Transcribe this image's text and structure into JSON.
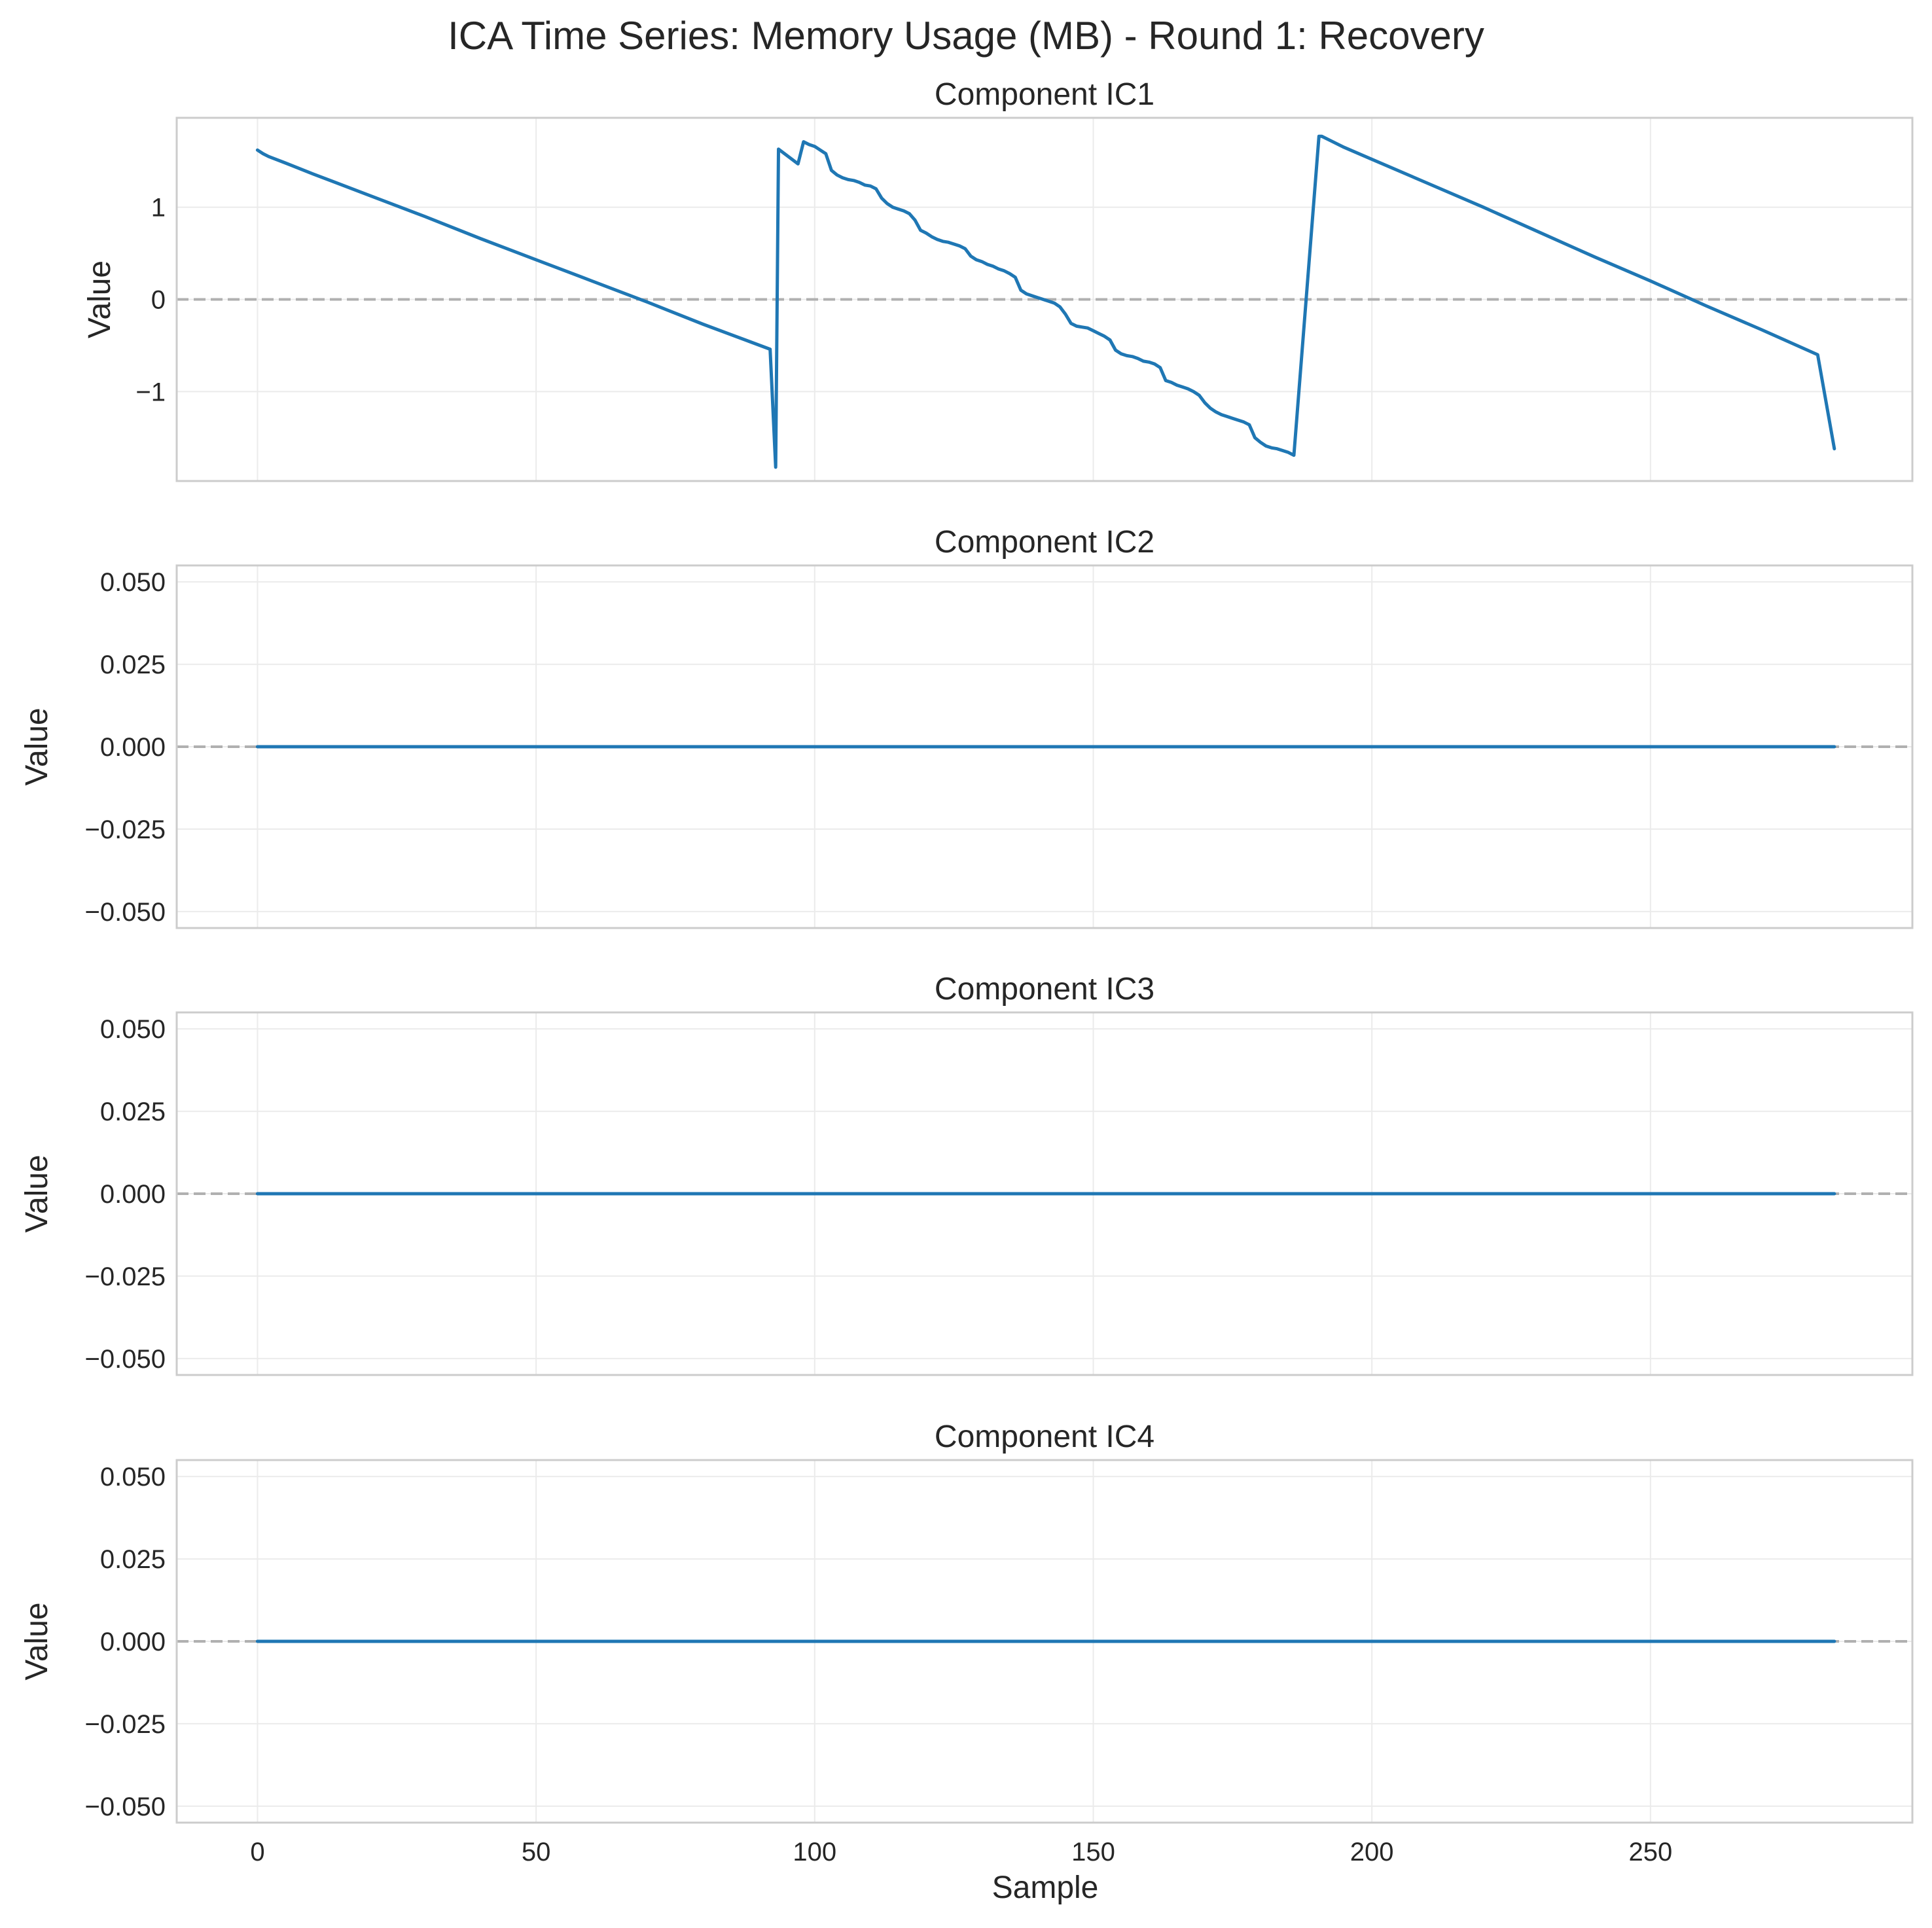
{
  "chart_data": {
    "type": "line",
    "title": "ICA Time Series: Memory Usage (MB) - Round 1: Recovery",
    "xlabel": "Sample",
    "xlim": [
      -14.5,
      297
    ],
    "xticks": [
      0,
      50,
      100,
      150,
      200,
      250
    ],
    "grid": true,
    "line_color": "#1f77b4",
    "zero_line_color": "#b0b0b0",
    "panels": [
      {
        "title": "Component IC1",
        "ylabel": "Value",
        "ylim": [
          -1.97,
          1.97
        ],
        "yticks": [
          {
            "v": 1,
            "label": "1"
          },
          {
            "v": 0,
            "label": "0"
          },
          {
            "v": -1,
            "label": "−1"
          }
        ],
        "points": [
          [
            0,
            1.62
          ],
          [
            1,
            1.58
          ],
          [
            2,
            1.55
          ],
          [
            5,
            1.48
          ],
          [
            10,
            1.36
          ],
          [
            20,
            1.13
          ],
          [
            30,
            0.9
          ],
          [
            40,
            0.66
          ],
          [
            50,
            0.43
          ],
          [
            60,
            0.2
          ],
          [
            70,
            -0.03
          ],
          [
            80,
            -0.27
          ],
          [
            88,
            -0.45
          ],
          [
            92,
            -0.54
          ],
          [
            93,
            -1.82
          ],
          [
            93.5,
            1.63
          ],
          [
            97,
            1.47
          ],
          [
            98,
            1.71
          ],
          [
            99,
            1.68
          ],
          [
            100,
            1.66
          ],
          [
            101,
            1.62
          ],
          [
            102,
            1.58
          ],
          [
            103,
            1.4
          ],
          [
            104,
            1.35
          ],
          [
            105,
            1.32
          ],
          [
            106,
            1.3
          ],
          [
            107,
            1.29
          ],
          [
            108,
            1.27
          ],
          [
            109,
            1.24
          ],
          [
            110,
            1.23
          ],
          [
            111,
            1.2
          ],
          [
            112,
            1.1
          ],
          [
            113,
            1.04
          ],
          [
            114,
            1.0
          ],
          [
            115,
            0.98
          ],
          [
            116,
            0.96
          ],
          [
            117,
            0.93
          ],
          [
            118,
            0.86
          ],
          [
            119,
            0.75
          ],
          [
            120,
            0.72
          ],
          [
            121,
            0.68
          ],
          [
            122,
            0.65
          ],
          [
            123,
            0.63
          ],
          [
            124,
            0.62
          ],
          [
            125,
            0.6
          ],
          [
            126,
            0.58
          ],
          [
            127,
            0.55
          ],
          [
            128,
            0.47
          ],
          [
            129,
            0.43
          ],
          [
            130,
            0.41
          ],
          [
            131,
            0.38
          ],
          [
            132,
            0.36
          ],
          [
            133,
            0.33
          ],
          [
            134,
            0.31
          ],
          [
            135,
            0.28
          ],
          [
            136,
            0.24
          ],
          [
            137,
            0.1
          ],
          [
            138,
            0.06
          ],
          [
            139,
            0.04
          ],
          [
            140,
            0.02
          ],
          [
            141,
            0.0
          ],
          [
            142,
            -0.02
          ],
          [
            143,
            -0.04
          ],
          [
            144,
            -0.08
          ],
          [
            145,
            -0.16
          ],
          [
            146,
            -0.26
          ],
          [
            147,
            -0.29
          ],
          [
            148,
            -0.3
          ],
          [
            149,
            -0.31
          ],
          [
            150,
            -0.34
          ],
          [
            151,
            -0.37
          ],
          [
            152,
            -0.4
          ],
          [
            153,
            -0.44
          ],
          [
            154,
            -0.55
          ],
          [
            155,
            -0.59
          ],
          [
            156,
            -0.61
          ],
          [
            157,
            -0.62
          ],
          [
            158,
            -0.64
          ],
          [
            159,
            -0.67
          ],
          [
            160,
            -0.68
          ],
          [
            161,
            -0.7
          ],
          [
            162,
            -0.74
          ],
          [
            163,
            -0.88
          ],
          [
            164,
            -0.9
          ],
          [
            165,
            -0.93
          ],
          [
            166,
            -0.95
          ],
          [
            167,
            -0.97
          ],
          [
            168,
            -1.0
          ],
          [
            169,
            -1.04
          ],
          [
            170,
            -1.12
          ],
          [
            171,
            -1.18
          ],
          [
            172,
            -1.22
          ],
          [
            173,
            -1.25
          ],
          [
            174,
            -1.27
          ],
          [
            175,
            -1.29
          ],
          [
            176,
            -1.31
          ],
          [
            177,
            -1.33
          ],
          [
            178,
            -1.36
          ],
          [
            179,
            -1.5
          ],
          [
            180,
            -1.55
          ],
          [
            181,
            -1.59
          ],
          [
            182,
            -1.61
          ],
          [
            183,
            -1.62
          ],
          [
            184,
            -1.64
          ],
          [
            185,
            -1.66
          ],
          [
            186,
            -1.69
          ],
          [
            190.5,
            1.77
          ],
          [
            191,
            1.77
          ],
          [
            195,
            1.65
          ],
          [
            200,
            1.52
          ],
          [
            210,
            1.26
          ],
          [
            220,
            1.0
          ],
          [
            230,
            0.73
          ],
          [
            240,
            0.46
          ],
          [
            250,
            0.2
          ],
          [
            260,
            -0.07
          ],
          [
            270,
            -0.33
          ],
          [
            280,
            -0.6
          ],
          [
            283,
            -1.62
          ]
        ]
      },
      {
        "title": "Component IC2",
        "ylabel": "Value",
        "ylim": [
          -0.055,
          0.055
        ],
        "yticks": [
          {
            "v": 0.05,
            "label": "0.050"
          },
          {
            "v": 0.025,
            "label": "0.025"
          },
          {
            "v": 0,
            "label": "0.000"
          },
          {
            "v": -0.025,
            "label": "−0.025"
          },
          {
            "v": -0.05,
            "label": "−0.050"
          }
        ],
        "points": [
          [
            0,
            0
          ],
          [
            283,
            0
          ]
        ]
      },
      {
        "title": "Component IC3",
        "ylabel": "Value",
        "ylim": [
          -0.055,
          0.055
        ],
        "yticks": [
          {
            "v": 0.05,
            "label": "0.050"
          },
          {
            "v": 0.025,
            "label": "0.025"
          },
          {
            "v": 0,
            "label": "0.000"
          },
          {
            "v": -0.025,
            "label": "−0.025"
          },
          {
            "v": -0.05,
            "label": "−0.050"
          }
        ],
        "points": [
          [
            0,
            0
          ],
          [
            283,
            0
          ]
        ]
      },
      {
        "title": "Component IC4",
        "ylabel": "Value",
        "ylim": [
          -0.055,
          0.055
        ],
        "yticks": [
          {
            "v": 0.05,
            "label": "0.050"
          },
          {
            "v": 0.025,
            "label": "0.025"
          },
          {
            "v": 0,
            "label": "0.000"
          },
          {
            "v": -0.025,
            "label": "−0.025"
          },
          {
            "v": -0.05,
            "label": "−0.050"
          }
        ],
        "points": [
          [
            0,
            0
          ],
          [
            283,
            0
          ]
        ]
      }
    ]
  }
}
